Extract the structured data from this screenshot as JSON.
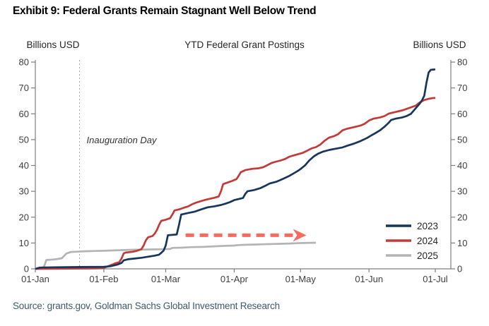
{
  "header": {
    "title": "Exhibit 9: Federal Grants Remain Stagnant Well Below Trend"
  },
  "footer": {
    "source": "Source: grants.gov, Goldman Sachs Global Investment Research"
  },
  "chart_data": {
    "type": "line",
    "title": "YTD Federal Grant Postings",
    "ylabel_left": "Billions USD",
    "ylabel_right": "Billions USD",
    "ylim": [
      0,
      80
    ],
    "yticks": [
      0,
      10,
      20,
      30,
      40,
      50,
      60,
      70,
      80
    ],
    "grid": "off",
    "x_axis": {
      "unit": "day_of_year",
      "range": [
        0,
        181
      ]
    },
    "xticks": [
      {
        "day": 0,
        "label": "01-Jan"
      },
      {
        "day": 31,
        "label": "01-Feb"
      },
      {
        "day": 59,
        "label": "01-Mar"
      },
      {
        "day": 90,
        "label": "01-Apr"
      },
      {
        "day": 120,
        "label": "01-May"
      },
      {
        "day": 151,
        "label": "01-Jun"
      },
      {
        "day": 181,
        "label": "01-Jul"
      }
    ],
    "annotations": {
      "inauguration": {
        "label": "Inauguration Day",
        "day": 20,
        "style": "vertical-dotted-line",
        "color": "#a6a6a6"
      },
      "trend_arrow": {
        "style": "dashed-arrow-right",
        "from_day": 68,
        "to_day": 122,
        "value": 13,
        "color": "#f8695e"
      }
    },
    "legend": {
      "position": "bottom-right",
      "entries": [
        {
          "label": "2023",
          "color": "#17365d"
        },
        {
          "label": "2024",
          "color": "#c33a38"
        },
        {
          "label": "2025",
          "color": "#b4b4b6"
        }
      ]
    },
    "series": [
      {
        "name": "2023",
        "color": "#17365d",
        "points": [
          [
            0,
            0
          ],
          [
            2,
            0.5
          ],
          [
            8,
            0.6
          ],
          [
            20,
            0.7
          ],
          [
            31,
            0.8
          ],
          [
            34,
            1
          ],
          [
            37,
            1.6
          ],
          [
            39,
            2.3
          ],
          [
            40,
            3.3
          ],
          [
            42,
            3.7
          ],
          [
            45,
            4
          ],
          [
            48,
            4.3
          ],
          [
            51,
            4.7
          ],
          [
            54,
            5.1
          ],
          [
            56,
            5.5
          ],
          [
            57,
            6.2
          ],
          [
            58,
            7
          ],
          [
            59,
            9
          ],
          [
            60,
            13
          ],
          [
            64,
            13.3
          ],
          [
            65,
            17
          ],
          [
            66,
            21
          ],
          [
            69,
            21.6
          ],
          [
            72,
            22.1
          ],
          [
            75,
            23
          ],
          [
            78,
            23.8
          ],
          [
            81,
            24.2
          ],
          [
            84,
            24.7
          ],
          [
            86,
            25.2
          ],
          [
            88,
            25.8
          ],
          [
            90,
            26.6
          ],
          [
            92,
            27
          ],
          [
            94,
            27.4
          ],
          [
            95,
            29
          ],
          [
            96,
            30
          ],
          [
            99,
            30.5
          ],
          [
            102,
            31.3
          ],
          [
            104,
            32.1
          ],
          [
            106,
            33
          ],
          [
            109,
            33.7
          ],
          [
            111,
            34.4
          ],
          [
            113,
            35.2
          ],
          [
            115,
            36
          ],
          [
            117,
            37
          ],
          [
            119,
            38
          ],
          [
            120,
            38.6
          ],
          [
            122,
            40
          ],
          [
            124,
            42
          ],
          [
            126,
            43.5
          ],
          [
            128,
            44.6
          ],
          [
            130,
            45.3
          ],
          [
            133,
            46
          ],
          [
            136,
            46.5
          ],
          [
            139,
            47
          ],
          [
            141,
            47.6
          ],
          [
            144,
            48.4
          ],
          [
            147,
            49.4
          ],
          [
            150,
            50.6
          ],
          [
            152,
            51.6
          ],
          [
            154,
            52.6
          ],
          [
            156,
            53.6
          ],
          [
            158,
            55
          ],
          [
            160,
            56.6
          ],
          [
            161,
            57.6
          ],
          [
            163,
            58.1
          ],
          [
            166,
            58.6
          ],
          [
            168,
            59.1
          ],
          [
            170,
            60
          ],
          [
            171,
            61
          ],
          [
            172,
            62
          ],
          [
            173,
            63
          ],
          [
            174,
            64
          ],
          [
            175,
            65.2
          ],
          [
            176,
            67
          ],
          [
            177,
            72
          ],
          [
            178,
            76
          ],
          [
            179,
            77
          ],
          [
            181,
            77.2
          ]
        ]
      },
      {
        "name": "2024",
        "color": "#c33a38",
        "points": [
          [
            0,
            0
          ],
          [
            28,
            0.2
          ],
          [
            31,
            0.4
          ],
          [
            33,
            1
          ],
          [
            35,
            1.7
          ],
          [
            36,
            2.1
          ],
          [
            38,
            2.6
          ],
          [
            39,
            4
          ],
          [
            40,
            6
          ],
          [
            41,
            6.3
          ],
          [
            44,
            6.6
          ],
          [
            46,
            7
          ],
          [
            48,
            7.6
          ],
          [
            49,
            9
          ],
          [
            50,
            11
          ],
          [
            51,
            12.2
          ],
          [
            53,
            12.7
          ],
          [
            54,
            13.6
          ],
          [
            55,
            15
          ],
          [
            56,
            17
          ],
          [
            57,
            18.6
          ],
          [
            59,
            19
          ],
          [
            61,
            19.6
          ],
          [
            62,
            21
          ],
          [
            63,
            22.6
          ],
          [
            65,
            23
          ],
          [
            67,
            23.6
          ],
          [
            69,
            24.1
          ],
          [
            71,
            25
          ],
          [
            73,
            25.7
          ],
          [
            75,
            26.2
          ],
          [
            77,
            26.7
          ],
          [
            79,
            27.1
          ],
          [
            81,
            27.5
          ],
          [
            83,
            28
          ],
          [
            84,
            30
          ],
          [
            85,
            32.8
          ],
          [
            87,
            33.4
          ],
          [
            89,
            34
          ],
          [
            91,
            34.7
          ],
          [
            92,
            36
          ],
          [
            93,
            37.4
          ],
          [
            95,
            38.2
          ],
          [
            98,
            38.7
          ],
          [
            101,
            38.9
          ],
          [
            103,
            39.3
          ],
          [
            105,
            40.1
          ],
          [
            107,
            41
          ],
          [
            109,
            41.5
          ],
          [
            111,
            41.9
          ],
          [
            113,
            42.5
          ],
          [
            115,
            43.4
          ],
          [
            117,
            43.9
          ],
          [
            119,
            44.4
          ],
          [
            121,
            44.9
          ],
          [
            123,
            45.7
          ],
          [
            125,
            46.6
          ],
          [
            127,
            47.1
          ],
          [
            129,
            48.1
          ],
          [
            131,
            49.6
          ],
          [
            133,
            50.8
          ],
          [
            135,
            51.3
          ],
          [
            137,
            52.1
          ],
          [
            139,
            53.6
          ],
          [
            141,
            54.2
          ],
          [
            144,
            54.8
          ],
          [
            147,
            55.4
          ],
          [
            149,
            56.1
          ],
          [
            151,
            57.4
          ],
          [
            153,
            58.1
          ],
          [
            156,
            58.6
          ],
          [
            158,
            59.1
          ],
          [
            160,
            60.1
          ],
          [
            163,
            60.7
          ],
          [
            166,
            61.3
          ],
          [
            168,
            61.9
          ],
          [
            170,
            62.5
          ],
          [
            172,
            63.1
          ],
          [
            174,
            64.4
          ],
          [
            176,
            65.3
          ],
          [
            178,
            65.8
          ],
          [
            180,
            66.1
          ],
          [
            181,
            66.1
          ]
        ]
      },
      {
        "name": "2025",
        "color": "#b4b4b6",
        "points": [
          [
            0,
            0
          ],
          [
            3,
            0.3
          ],
          [
            4,
            1
          ],
          [
            5,
            3.4
          ],
          [
            8,
            3.6
          ],
          [
            10,
            3.8
          ],
          [
            12,
            4.1
          ],
          [
            13,
            5
          ],
          [
            14,
            5.9
          ],
          [
            15,
            6.2
          ],
          [
            16,
            6.5
          ],
          [
            18,
            6.6
          ],
          [
            22,
            6.8
          ],
          [
            27,
            6.9
          ],
          [
            31,
            7
          ],
          [
            38,
            7.2
          ],
          [
            45,
            7.4
          ],
          [
            52,
            7.5
          ],
          [
            58,
            7.6
          ],
          [
            61,
            7.7
          ],
          [
            62,
            8.1
          ],
          [
            66,
            8.2
          ],
          [
            71,
            8.4
          ],
          [
            76,
            8.5
          ],
          [
            81,
            8.7
          ],
          [
            86,
            8.9
          ],
          [
            90,
            9
          ],
          [
            92,
            9.2
          ],
          [
            95,
            9.3
          ],
          [
            99,
            9.4
          ],
          [
            103,
            9.5
          ],
          [
            107,
            9.6
          ],
          [
            111,
            9.7
          ],
          [
            115,
            9.8
          ],
          [
            118,
            9.9
          ],
          [
            121,
            10
          ],
          [
            127,
            10.1
          ]
        ]
      }
    ]
  }
}
